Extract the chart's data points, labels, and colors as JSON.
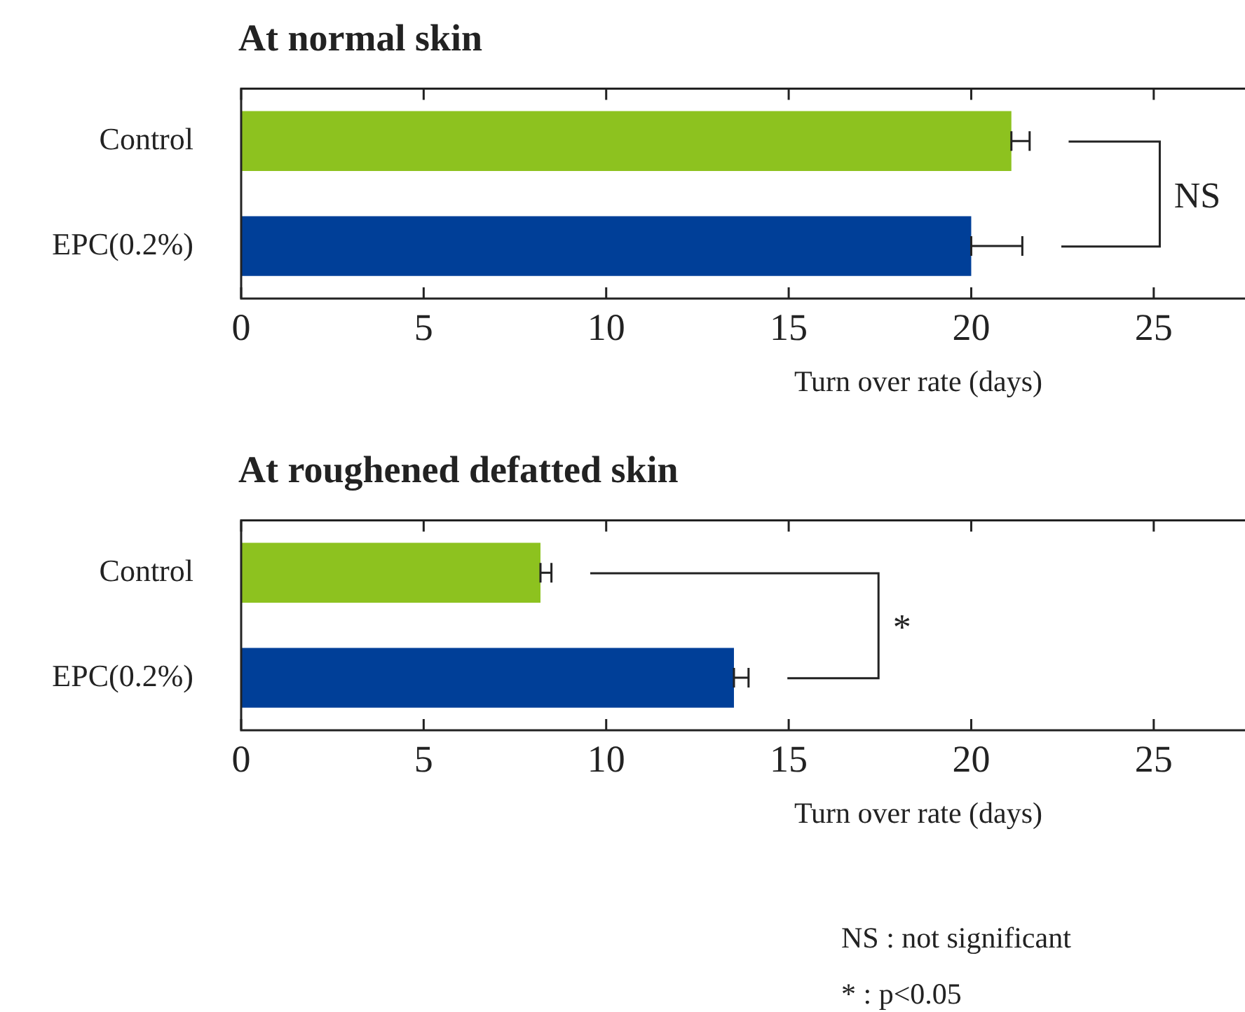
{
  "chart_data": [
    {
      "type": "bar",
      "orientation": "horizontal",
      "title": "At normal skin",
      "xlabel": "Turn over rate (days)",
      "categories": [
        "Control",
        "EPC(0.2%)"
      ],
      "values": [
        21.1,
        20.0
      ],
      "colors": [
        "#8dc21f",
        "#003f98"
      ],
      "errors": [
        [
          21.1,
          21.6
        ],
        [
          20.0,
          21.4
        ]
      ],
      "xlim": [
        0,
        27.5
      ],
      "xticks": [
        0,
        5,
        10,
        15,
        20,
        25
      ],
      "annotations": [
        "NS"
      ]
    },
    {
      "type": "bar",
      "orientation": "horizontal",
      "title": "At roughened defatted skin",
      "xlabel": "Turn over rate (days)",
      "categories": [
        "Control",
        "EPC(0.2%)"
      ],
      "values": [
        8.2,
        13.5
      ],
      "colors": [
        "#8dc21f",
        "#003f98"
      ],
      "errors": [
        [
          8.2,
          8.5
        ],
        [
          13.5,
          13.9
        ]
      ],
      "xlim": [
        0,
        27.5
      ],
      "xticks": [
        0,
        5,
        10,
        15,
        20,
        25
      ],
      "annotations": [
        "*",
        "NS : not significant",
        "* : p<0.05"
      ]
    }
  ]
}
